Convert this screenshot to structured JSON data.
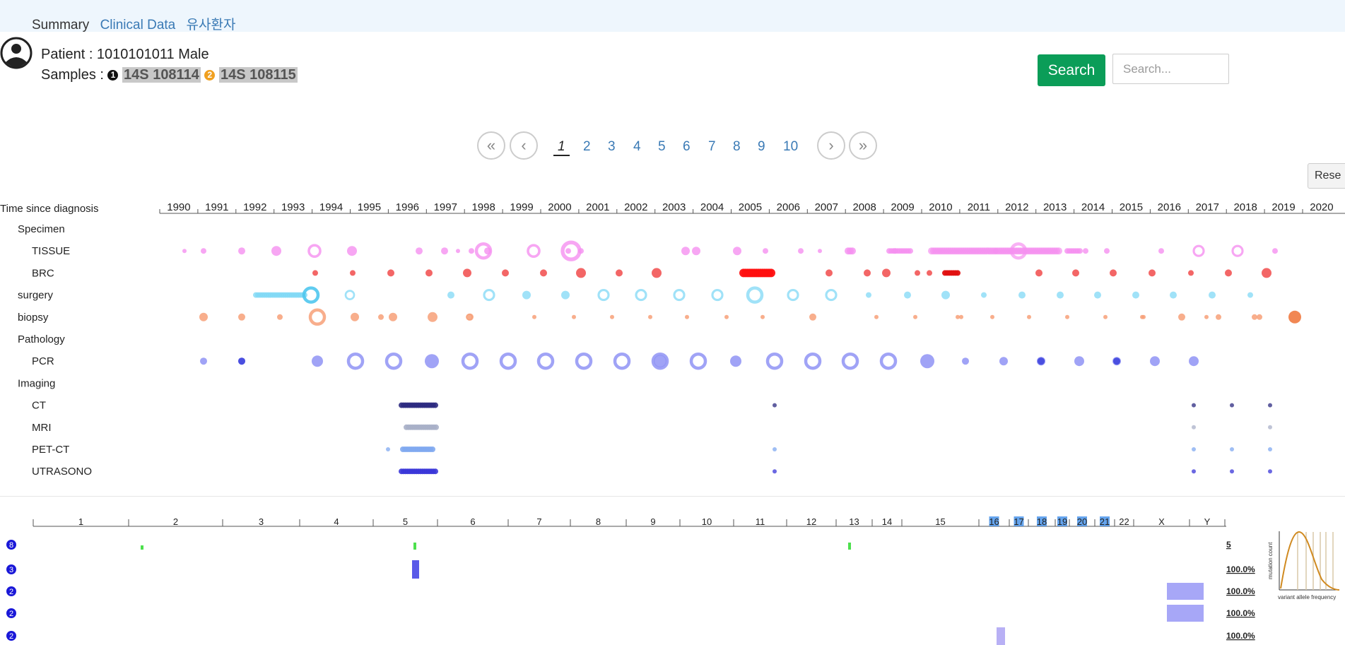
{
  "nav": {
    "tabs": [
      "Summary",
      "Clinical Data",
      "유사환자"
    ]
  },
  "patient": {
    "label": "Patient : 1010101011 Male",
    "samples_label": "Samples : ",
    "samples": [
      {
        "num": "1",
        "id": "14S 108114",
        "color": "#111111"
      },
      {
        "num": "2",
        "id": "14S 108115",
        "color": "#f0a020"
      }
    ]
  },
  "search": {
    "button": "Search",
    "placeholder": "Search..."
  },
  "reset": {
    "label": "Rese"
  },
  "pager": {
    "first": "«",
    "prev": "‹",
    "next": "›",
    "last": "»",
    "pages": [
      "1",
      "2",
      "3",
      "4",
      "5",
      "6",
      "7",
      "8",
      "9",
      "10"
    ],
    "active": "1"
  },
  "timeline": {
    "axis_label": "Time since diagnosis",
    "years": [
      "1990",
      "1991",
      "1992",
      "1993",
      "1994",
      "1995",
      "1996",
      "1997",
      "1998",
      "1999",
      "2000",
      "2001",
      "2002",
      "2003",
      "2004",
      "2005",
      "2006",
      "2007",
      "2008",
      "2009",
      "2010",
      "2011",
      "2012",
      "2013",
      "2014",
      "2015",
      "2016",
      "2017",
      "2018",
      "2019",
      "2020"
    ],
    "rows": [
      {
        "label": "Specimen",
        "indent": 1,
        "color": ""
      },
      {
        "label": "TISSUE",
        "indent": 2,
        "color": "#f590f0"
      },
      {
        "label": "BRC",
        "indent": 2,
        "color": "#f25555"
      },
      {
        "label": "surgery",
        "indent": 1,
        "color": "#80d8f5"
      },
      {
        "label": "biopsy",
        "indent": 1,
        "color": "#f7a078"
      },
      {
        "label": "Pathology",
        "indent": 1,
        "color": ""
      },
      {
        "label": "PCR",
        "indent": 2,
        "color": "#8f93f4"
      },
      {
        "label": "Imaging",
        "indent": 1,
        "color": ""
      },
      {
        "label": "CT",
        "indent": 2,
        "color": "#2c2a80"
      },
      {
        "label": "MRI",
        "indent": 2,
        "color": "#a9b0c8"
      },
      {
        "label": "PET-CT",
        "indent": 2,
        "color": "#7fa8f0"
      },
      {
        "label": "UTRASONO",
        "indent": 2,
        "color": "#3a36d8"
      }
    ]
  },
  "genome": {
    "chromosomes": [
      "1",
      "2",
      "3",
      "4",
      "5",
      "6",
      "7",
      "8",
      "9",
      "10",
      "11",
      "12",
      "13",
      "14",
      "15",
      "16",
      "17",
      "18",
      "19",
      "20",
      "21",
      "22",
      "X",
      "Y"
    ],
    "highlighted": [
      "16",
      "17",
      "18",
      "19",
      "20",
      "21"
    ],
    "rows": [
      {
        "marker": "8",
        "value": "5"
      },
      {
        "marker": "3",
        "value": "100.0%"
      },
      {
        "marker": "2",
        "value": "100.0%"
      },
      {
        "marker": "2",
        "value": "100.0%"
      },
      {
        "marker": "2",
        "value": "100.0%"
      }
    ],
    "mini_chart": {
      "ylabel": "mutation count",
      "xlabel": "variant allele frequency",
      "line_color": "#d08a20"
    }
  }
}
